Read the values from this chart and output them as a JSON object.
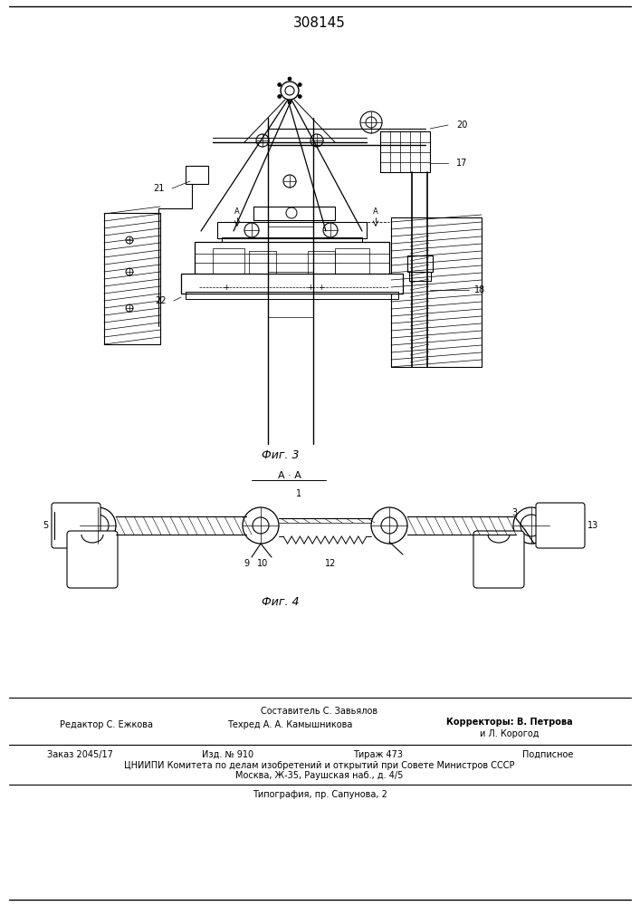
{
  "title": "308145",
  "bg_color": "#ffffff",
  "fig1_caption": "Фиг. 3",
  "fig2_caption": "Фиг. 4",
  "fig2_section": "А · А",
  "footer_composer": "Составитель С. Завьялов",
  "footer_editor": "Редактор С. Ежкова",
  "footer_tech": "Техред А. А. Камышникова",
  "footer_correctors_label": "Корректоры: В. Петрова",
  "footer_correctors2": "и Л. Корогод",
  "footer_order": "Заказ 2045/17",
  "footer_pub": "Изд. № 910",
  "footer_copies": "Тираж 473",
  "footer_sub": "Подписное",
  "footer_org": "ЦНИИПИ Комитета по делам изобретений и открытий при Совете Министров СССР",
  "footer_addr": "Москва, Ж-35, Раушская наб., д. 4/5",
  "footer_print": "Типография, пр. Сапунова, 2"
}
